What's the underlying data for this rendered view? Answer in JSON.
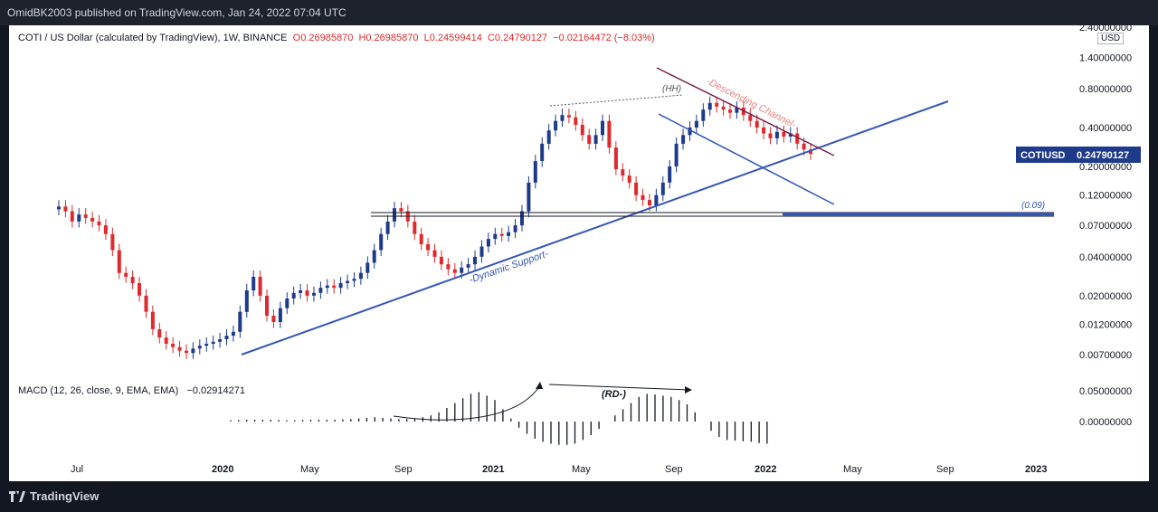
{
  "header": {
    "publisher": "OmidBK2003 published on TradingView.com, Jan 24, 2022 07:04 UTC"
  },
  "legend": {
    "symbol": "COTI / US Dollar (calculated by TradingView), 1W, BINANCE",
    "open": "O0.26985870",
    "high": "H0.26985870",
    "low": "L0.24599414",
    "close": "C0.24790127",
    "change": "−0.02164472 (−8.03%)"
  },
  "macd": {
    "label": "MACD (12, 26, close, 9, EMA, EMA)",
    "value": "−0.02914271"
  },
  "footer": {
    "brand": "TradingView"
  },
  "price_scale": {
    "unit": "USD",
    "current_symbol": "COTIUSD",
    "current_price": "0.24790127"
  },
  "annotations": {
    "hh": "(HH)",
    "channel": "-Descending Channel-",
    "support": "-Dynamic Support-",
    "level": "(0.09)",
    "rd": "(RD-)"
  },
  "colors": {
    "up": "#1e3a8a",
    "down": "#e0292c",
    "support_line": "#3356b8",
    "channel_line": "#7a1f4a",
    "background": "#131722"
  },
  "chart_data": {
    "type": "candlestick",
    "timeframe": "1W",
    "scale": "log",
    "price_ticks": [
      "2.40000000",
      "1.40000000",
      "0.80000000",
      "0.40000000",
      "0.20000000",
      "0.12000000",
      "0.07000000",
      "0.04000000",
      "0.02000000",
      "0.01200000",
      "0.00700000"
    ],
    "macd_ticks": [
      "0.05000000",
      "0.00000000"
    ],
    "x_ticks": [
      "Jul",
      "2020",
      "May",
      "Sep",
      "2021",
      "May",
      "Sep",
      "2022",
      "May",
      "Sep",
      "2023"
    ],
    "series": [
      {
        "name": "price",
        "values": [
          0.098,
          0.09,
          0.075,
          0.085,
          0.08,
          0.075,
          0.07,
          0.06,
          0.045,
          0.03,
          0.028,
          0.025,
          0.02,
          0.015,
          0.011,
          0.0095,
          0.0085,
          0.008,
          0.0075,
          0.0072,
          0.0078,
          0.0082,
          0.0085,
          0.0088,
          0.0092,
          0.0098,
          0.0105,
          0.015,
          0.022,
          0.028,
          0.02,
          0.014,
          0.0125,
          0.016,
          0.019,
          0.021,
          0.022,
          0.02,
          0.021,
          0.023,
          0.024,
          0.023,
          0.025,
          0.026,
          0.027,
          0.03,
          0.036,
          0.045,
          0.06,
          0.075,
          0.095,
          0.09,
          0.075,
          0.06,
          0.05,
          0.045,
          0.04,
          0.035,
          0.032,
          0.03,
          0.033,
          0.035,
          0.04,
          0.048,
          0.055,
          0.06,
          0.058,
          0.062,
          0.07,
          0.09,
          0.15,
          0.22,
          0.3,
          0.38,
          0.45,
          0.5,
          0.48,
          0.42,
          0.35,
          0.3,
          0.35,
          0.45,
          0.28,
          0.19,
          0.17,
          0.15,
          0.12,
          0.11,
          0.1,
          0.12,
          0.15,
          0.2,
          0.3,
          0.35,
          0.4,
          0.45,
          0.55,
          0.62,
          0.58,
          0.55,
          0.52,
          0.57,
          0.5,
          0.45,
          0.4,
          0.36,
          0.33,
          0.37,
          0.34,
          0.36,
          0.3,
          0.27,
          0.25
        ]
      },
      {
        "name": "MACD histogram",
        "values": [
          0.002,
          0.0025,
          0.003,
          0.003,
          0.003,
          0.003,
          0.0025,
          0.002,
          0.002,
          0.0025,
          0.003,
          0.003,
          0.003,
          0.003,
          0.0035,
          0.004,
          0.005,
          0.006,
          0.007,
          0.006,
          0.005,
          0.004,
          0.004,
          0.005,
          0.007,
          0.01,
          0.015,
          0.022,
          0.03,
          0.038,
          0.045,
          0.048,
          0.042,
          0.035,
          0.02,
          0.005,
          -0.01,
          -0.02,
          -0.028,
          -0.033,
          -0.036,
          -0.038,
          -0.038,
          -0.036,
          -0.03,
          -0.022,
          -0.012,
          0.0,
          0.01,
          0.02,
          0.03,
          0.04,
          0.045,
          0.044,
          0.042,
          0.04,
          0.035,
          0.028,
          0.015,
          0.0,
          -0.015,
          -0.025,
          -0.03,
          -0.031,
          -0.032,
          -0.033,
          -0.035,
          -0.036
        ]
      }
    ]
  }
}
